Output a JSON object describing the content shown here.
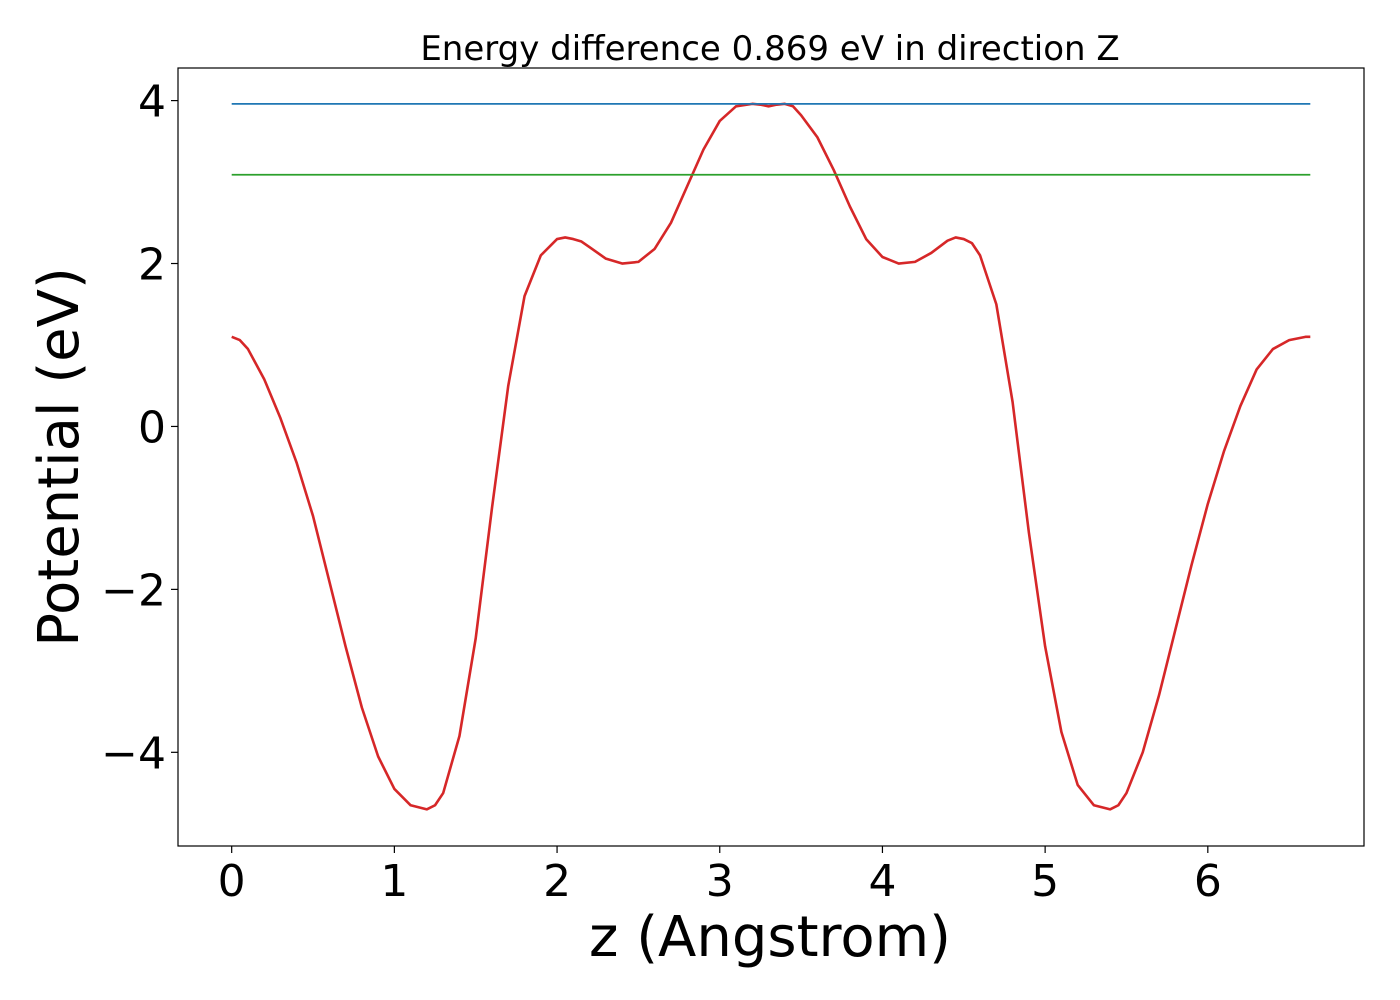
{
  "chart_data": {
    "type": "line",
    "title": "Energy difference 0.869 eV in direction Z",
    "xlabel": "z (Angstrom)",
    "ylabel": "Potential (eV)",
    "xlim": [
      -0.33,
      6.96
    ],
    "ylim": [
      -5.15,
      4.4
    ],
    "xticks": [
      0,
      1,
      2,
      3,
      4,
      5,
      6
    ],
    "xtick_labels": [
      "0",
      "1",
      "2",
      "3",
      "4",
      "5",
      "6"
    ],
    "yticks": [
      -4,
      -2,
      0,
      2,
      4
    ],
    "ytick_labels": [
      "−4",
      "−2",
      "0",
      "2",
      "4"
    ],
    "grid": false,
    "series": [
      {
        "color": "#d62728",
        "x": [
          0,
          0.05,
          0.1,
          0.2,
          0.3,
          0.4,
          0.5,
          0.6,
          0.7,
          0.8,
          0.9,
          1.0,
          1.1,
          1.2,
          1.25,
          1.3,
          1.4,
          1.5,
          1.6,
          1.7,
          1.8,
          1.9,
          2.0,
          2.05,
          2.1,
          2.15,
          2.2,
          2.3,
          2.4,
          2.5,
          2.6,
          2.7,
          2.8,
          2.9,
          3.0,
          3.1,
          3.2,
          3.25,
          3.3,
          3.35,
          3.4,
          3.45,
          3.5,
          3.6,
          3.7,
          3.8,
          3.9,
          4.0,
          4.1,
          4.2,
          4.3,
          4.4,
          4.45,
          4.5,
          4.55,
          4.6,
          4.7,
          4.8,
          4.9,
          5.0,
          5.1,
          5.2,
          5.3,
          5.4,
          5.45,
          5.5,
          5.6,
          5.7,
          5.8,
          5.9,
          6.0,
          6.1,
          6.2,
          6.3,
          6.4,
          6.5,
          6.6,
          6.63
        ],
        "y": [
          1.1,
          1.06,
          0.95,
          0.58,
          0.1,
          -0.45,
          -1.1,
          -1.9,
          -2.7,
          -3.45,
          -4.05,
          -4.45,
          -4.65,
          -4.7,
          -4.65,
          -4.5,
          -3.8,
          -2.6,
          -1.0,
          0.5,
          1.6,
          2.1,
          2.3,
          2.32,
          2.3,
          2.27,
          2.2,
          2.06,
          2.0,
          2.02,
          2.18,
          2.5,
          2.95,
          3.4,
          3.75,
          3.93,
          3.96,
          3.95,
          3.93,
          3.95,
          3.96,
          3.93,
          3.82,
          3.55,
          3.15,
          2.7,
          2.3,
          2.08,
          2.0,
          2.02,
          2.13,
          2.28,
          2.32,
          2.3,
          2.25,
          2.1,
          1.5,
          0.3,
          -1.3,
          -2.7,
          -3.75,
          -4.4,
          -4.65,
          -4.7,
          -4.65,
          -4.5,
          -4.0,
          -3.3,
          -2.5,
          -1.7,
          -0.95,
          -0.3,
          0.25,
          0.7,
          0.95,
          1.06,
          1.1,
          1.1
        ]
      },
      {
        "color": "#1f77b4",
        "x": [
          0,
          6.63
        ],
        "y": [
          3.96,
          3.96
        ]
      },
      {
        "color": "#2ca02c",
        "x": [
          0,
          6.63
        ],
        "y": [
          3.09,
          3.09
        ]
      }
    ]
  }
}
